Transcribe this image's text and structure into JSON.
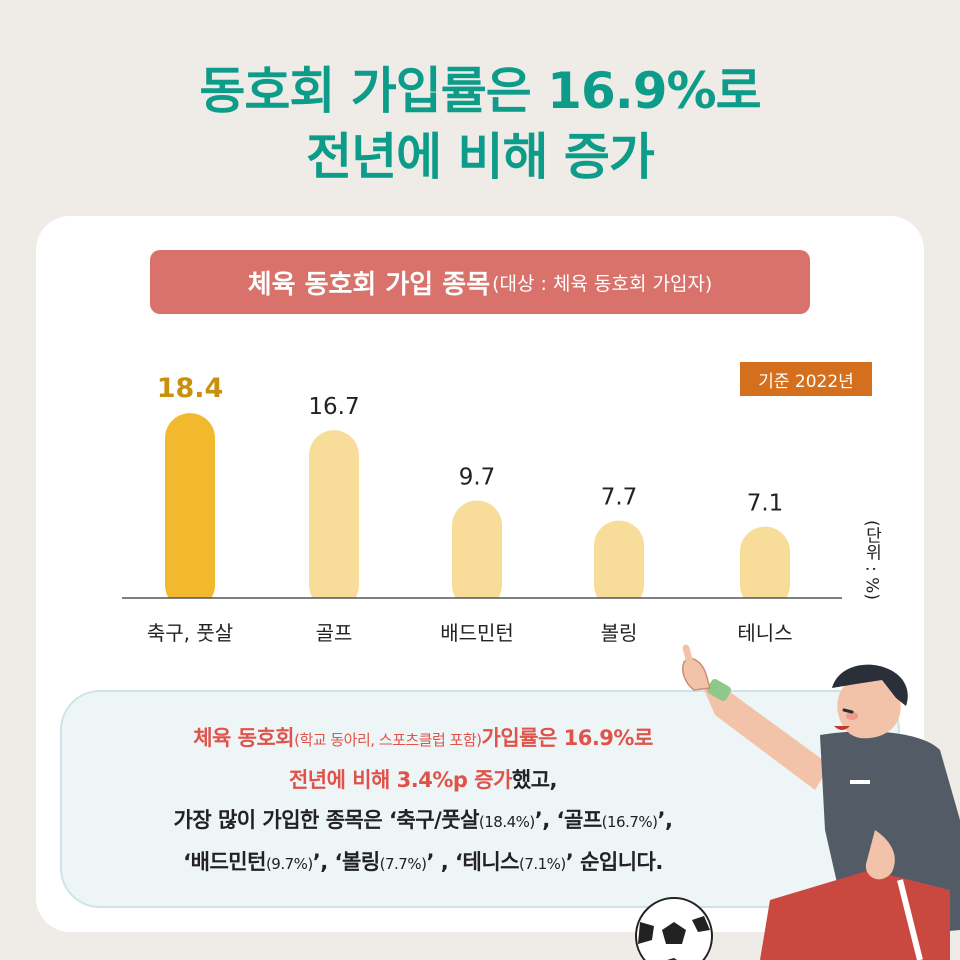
{
  "headline": {
    "line1": "동호회 가입률은 16.9%로",
    "line2": "전년에 비해 증가"
  },
  "chart_title": {
    "main": "체육 동호회 가입 종목",
    "sub": "(대상 : 체육 동호회 가입자)"
  },
  "base_year": "기준 2022년",
  "unit": "(단위 : %)",
  "chart_data": {
    "type": "bar",
    "categories": [
      "축구, 풋살",
      "골프",
      "배드민턴",
      "볼링",
      "테니스"
    ],
    "values": [
      18.4,
      16.7,
      9.7,
      7.7,
      7.1
    ],
    "value_labels": [
      "18.4",
      "16.7",
      "9.7",
      "7.7",
      "7.1"
    ],
    "highlight_index": 0,
    "highlight_color": "#f2b92f",
    "bar_color": "#f8dc9a",
    "highlight_label_color": "#c8900c",
    "ylim": [
      0,
      20
    ]
  },
  "summary": {
    "l1_a": "체육 동호회",
    "l1_b": "(학교 동아리, 스포츠클럽 포함)",
    "l1_c": "가입률은 16.9%로",
    "l2_a": "전년에 비해 3.4%p 증가",
    "l2_b": "했고,",
    "l3_a": "가장 많이 가입한 종목은 ‘축구/풋살",
    "l3_b": "(18.4%)",
    "l3_c": "’,  ‘골프",
    "l3_d": "(16.7%)",
    "l3_e": "’,",
    "l4_a": "‘배드민턴",
    "l4_b": "(9.7%)",
    "l4_c": "’, ‘볼링",
    "l4_d": "(7.7%)",
    "l4_e": "’ , ‘테니스",
    "l4_f": "(7.1%)",
    "l4_g": "’ 순입니다."
  },
  "colors": {
    "headline": "#0d9b8a",
    "title_bar": "#d9726a",
    "base_year_bg": "#d46f1d",
    "summary_accent": "#e0534a"
  }
}
